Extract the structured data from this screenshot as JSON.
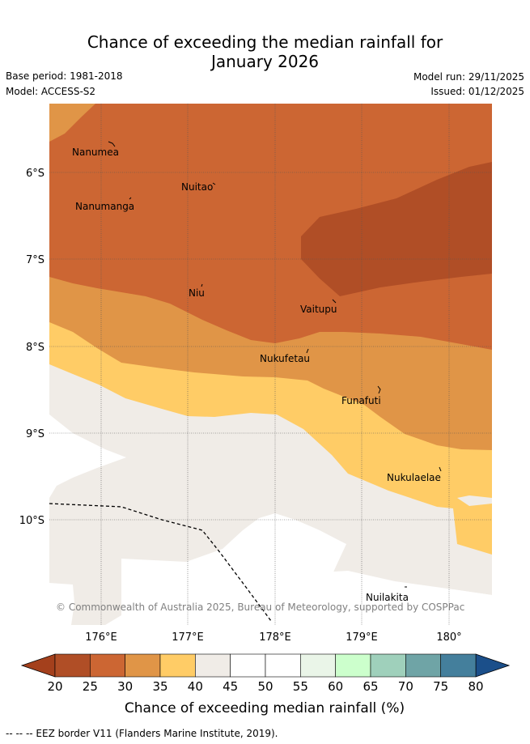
{
  "header": {
    "title_line1": "Chance of exceeding the median rainfall for",
    "title_line2": "January 2026",
    "base_period": "Base period: 1981-2018",
    "model": "Model: ACCESS-S2",
    "model_run": "Model run: 29/11/2025",
    "issued": "Issued: 01/12/2025"
  },
  "map": {
    "lat_labels": [
      "6°S",
      "7°S",
      "8°S",
      "9°S",
      "10°S"
    ],
    "lon_labels": [
      "176°E",
      "177°E",
      "178°E",
      "179°E",
      "180°"
    ],
    "places": [
      {
        "name": "Nanumea"
      },
      {
        "name": "Nuitao"
      },
      {
        "name": "Nanumanga"
      },
      {
        "name": "Niu"
      },
      {
        "name": "Vaitupu"
      },
      {
        "name": "Nukufetau"
      },
      {
        "name": "Funafuti"
      },
      {
        "name": "Nukulaelae"
      },
      {
        "name": "Nuilakita"
      }
    ],
    "copyright": "© Commonwealth of Australia 2025, Bureau of Meteorology, supported by COSPPac"
  },
  "colorbar": {
    "ticks": [
      "20",
      "25",
      "30",
      "35",
      "40",
      "45",
      "50",
      "55",
      "60",
      "65",
      "70",
      "75",
      "80"
    ],
    "colors": [
      "#b04e26",
      "#cc6633",
      "#e09547",
      "#ffcc66",
      "#f0ece7",
      "#ffffff",
      "#ffffff",
      "#eaf5e8",
      "#ccffcc",
      "#9fd0bb",
      "#6fa4a6",
      "#447f9c"
    ],
    "low_color": "#a4401c",
    "high_color": "#1b4f8a",
    "label": "Chance of exceeding median rainfall (%)"
  },
  "footnote": "--  --  -- EEZ border V11 (Flanders Marine Institute, 2019)."
}
